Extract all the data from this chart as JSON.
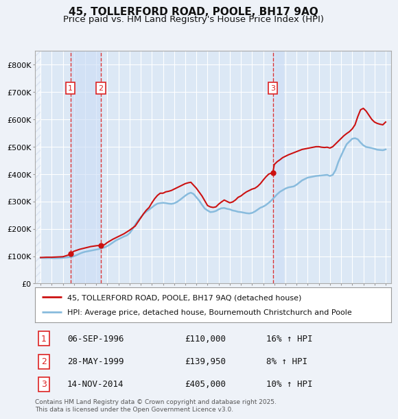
{
  "title": "45, TOLLERFORD ROAD, POOLE, BH17 9AQ",
  "subtitle": "Price paid vs. HM Land Registry's House Price Index (HPI)",
  "title_fontsize": 11,
  "subtitle_fontsize": 9.5,
  "background_color": "#eef2f8",
  "plot_bg_color": "#dce8f5",
  "grid_color": "#ffffff",
  "highlight_color": "#ccddf5",
  "hatch_color": "#c8d4e8",
  "legend_label_red": "45, TOLLERFORD ROAD, POOLE, BH17 9AQ (detached house)",
  "legend_label_blue": "HPI: Average price, detached house, Bournemouth Christchurch and Poole",
  "transactions": [
    {
      "label": "1",
      "date": "06-SEP-1996",
      "price": 110000,
      "pct": "16% ↑ HPI",
      "x": 1996.68
    },
    {
      "label": "2",
      "date": "28-MAY-1999",
      "price": 139950,
      "pct": "8% ↑ HPI",
      "x": 1999.41
    },
    {
      "label": "3",
      "date": "14-NOV-2014",
      "price": 405000,
      "pct": "10% ↑ HPI",
      "x": 2014.87
    }
  ],
  "hpi_x": [
    1994.0,
    1994.25,
    1994.5,
    1994.75,
    1995.0,
    1995.25,
    1995.5,
    1995.75,
    1996.0,
    1996.25,
    1996.5,
    1996.75,
    1997.0,
    1997.25,
    1997.5,
    1997.75,
    1998.0,
    1998.25,
    1998.5,
    1998.75,
    1999.0,
    1999.25,
    1999.5,
    1999.75,
    2000.0,
    2000.25,
    2000.5,
    2000.75,
    2001.0,
    2001.25,
    2001.5,
    2001.75,
    2002.0,
    2002.25,
    2002.5,
    2002.75,
    2003.0,
    2003.25,
    2003.5,
    2003.75,
    2004.0,
    2004.25,
    2004.5,
    2004.75,
    2005.0,
    2005.25,
    2005.5,
    2005.75,
    2006.0,
    2006.25,
    2006.5,
    2006.75,
    2007.0,
    2007.25,
    2007.5,
    2007.75,
    2008.0,
    2008.25,
    2008.5,
    2008.75,
    2009.0,
    2009.25,
    2009.5,
    2009.75,
    2010.0,
    2010.25,
    2010.5,
    2010.75,
    2011.0,
    2011.25,
    2011.5,
    2011.75,
    2012.0,
    2012.25,
    2012.5,
    2012.75,
    2013.0,
    2013.25,
    2013.5,
    2013.75,
    2014.0,
    2014.25,
    2014.5,
    2014.75,
    2015.0,
    2015.25,
    2015.5,
    2015.75,
    2016.0,
    2016.25,
    2016.5,
    2016.75,
    2017.0,
    2017.25,
    2017.5,
    2017.75,
    2018.0,
    2018.25,
    2018.5,
    2018.75,
    2019.0,
    2019.25,
    2019.5,
    2019.75,
    2020.0,
    2020.25,
    2020.5,
    2020.75,
    2021.0,
    2021.25,
    2021.5,
    2021.75,
    2022.0,
    2022.25,
    2022.5,
    2022.75,
    2023.0,
    2023.25,
    2023.5,
    2023.75,
    2024.0,
    2024.25,
    2024.5,
    2024.75,
    2025.0
  ],
  "hpi_y": [
    94000,
    93500,
    93200,
    93800,
    93000,
    92500,
    92800,
    93200,
    94000,
    95000,
    96000,
    97000,
    100000,
    104000,
    109000,
    113000,
    116000,
    118000,
    120000,
    122000,
    124000,
    126000,
    129000,
    132000,
    137000,
    143000,
    150000,
    157000,
    162000,
    167000,
    172000,
    176000,
    184000,
    198000,
    215000,
    230000,
    242000,
    254000,
    263000,
    270000,
    278000,
    286000,
    292000,
    294000,
    295000,
    294000,
    292000,
    291000,
    293000,
    298000,
    305000,
    313000,
    321000,
    328000,
    332000,
    327000,
    315000,
    303000,
    288000,
    274000,
    267000,
    261000,
    262000,
    265000,
    271000,
    275000,
    276000,
    273000,
    271000,
    267000,
    265000,
    262000,
    261000,
    259000,
    257000,
    256000,
    258000,
    263000,
    270000,
    277000,
    281000,
    287000,
    295000,
    304000,
    315000,
    326000,
    335000,
    341000,
    347000,
    351000,
    353000,
    355000,
    361000,
    369000,
    377000,
    382000,
    387000,
    389000,
    391000,
    393000,
    394000,
    395000,
    396000,
    397000,
    393000,
    397000,
    414000,
    444000,
    467000,
    489000,
    509000,
    519000,
    529000,
    531000,
    527000,
    515000,
    505000,
    499000,
    497000,
    495000,
    492000,
    489000,
    488000,
    487000,
    490000
  ],
  "price_x": [
    1994.0,
    1994.25,
    1994.5,
    1994.75,
    1995.0,
    1995.5,
    1996.0,
    1996.5,
    1996.68,
    1997.0,
    1997.5,
    1998.0,
    1998.5,
    1999.0,
    1999.25,
    1999.41,
    1999.75,
    2000.0,
    2000.5,
    2001.0,
    2001.5,
    2002.0,
    2002.5,
    2003.0,
    2003.25,
    2003.5,
    2003.75,
    2004.0,
    2004.25,
    2004.5,
    2004.75,
    2005.0,
    2005.25,
    2005.5,
    2005.75,
    2006.0,
    2006.25,
    2006.5,
    2006.75,
    2007.0,
    2007.25,
    2007.5,
    2008.0,
    2008.5,
    2009.0,
    2009.25,
    2009.5,
    2009.75,
    2010.0,
    2010.25,
    2010.5,
    2010.75,
    2011.0,
    2011.25,
    2011.5,
    2011.75,
    2012.0,
    2012.25,
    2012.5,
    2012.75,
    2013.0,
    2013.25,
    2013.5,
    2013.75,
    2014.0,
    2014.25,
    2014.5,
    2014.87,
    2015.0,
    2015.25,
    2015.5,
    2015.75,
    2016.0,
    2016.25,
    2016.5,
    2016.75,
    2017.0,
    2017.25,
    2017.5,
    2017.75,
    2018.0,
    2018.25,
    2018.5,
    2018.75,
    2019.0,
    2019.25,
    2019.5,
    2019.75,
    2020.0,
    2020.25,
    2020.5,
    2020.75,
    2021.0,
    2021.25,
    2021.5,
    2021.75,
    2022.0,
    2022.25,
    2022.5,
    2022.75,
    2023.0,
    2023.25,
    2023.5,
    2023.75,
    2024.0,
    2024.25,
    2024.5,
    2024.75,
    2025.0
  ],
  "price_y": [
    95000,
    95500,
    96000,
    96000,
    96000,
    97000,
    98000,
    104000,
    110000,
    118000,
    125000,
    130000,
    135000,
    138000,
    139000,
    139950,
    142000,
    150000,
    162000,
    172000,
    182000,
    195000,
    210000,
    240000,
    255000,
    268000,
    278000,
    295000,
    310000,
    322000,
    330000,
    330000,
    335000,
    337000,
    340000,
    345000,
    350000,
    355000,
    360000,
    365000,
    368000,
    370000,
    348000,
    320000,
    285000,
    280000,
    278000,
    280000,
    290000,
    298000,
    305000,
    300000,
    295000,
    298000,
    305000,
    315000,
    320000,
    328000,
    335000,
    340000,
    345000,
    348000,
    355000,
    365000,
    378000,
    390000,
    400000,
    405000,
    435000,
    445000,
    452000,
    460000,
    465000,
    470000,
    474000,
    478000,
    482000,
    486000,
    490000,
    492000,
    494000,
    496000,
    498000,
    500000,
    500000,
    498000,
    497000,
    498000,
    495000,
    500000,
    510000,
    520000,
    530000,
    540000,
    548000,
    555000,
    565000,
    580000,
    610000,
    635000,
    640000,
    630000,
    615000,
    600000,
    590000,
    585000,
    582000,
    580000,
    590000
  ],
  "xlim": [
    1993.5,
    2025.5
  ],
  "ylim": [
    0,
    850000
  ],
  "yticks": [
    0,
    100000,
    200000,
    300000,
    400000,
    500000,
    600000,
    700000,
    800000
  ],
  "ytick_labels": [
    "£0",
    "£100K",
    "£200K",
    "£300K",
    "£400K",
    "£500K",
    "£600K",
    "£700K",
    "£800K"
  ],
  "xticks": [
    1994,
    1995,
    1996,
    1997,
    1998,
    1999,
    2000,
    2001,
    2002,
    2003,
    2004,
    2005,
    2006,
    2007,
    2008,
    2009,
    2010,
    2011,
    2012,
    2013,
    2014,
    2015,
    2016,
    2017,
    2018,
    2019,
    2020,
    2021,
    2022,
    2023,
    2024,
    2025
  ],
  "vline_x": [
    1996.68,
    1999.41,
    2014.87
  ],
  "vline_color": "#dd2222",
  "red_color": "#cc1111",
  "blue_color": "#88bbdd",
  "marker_color": "#cc1111",
  "label_box_color": "#dd2222",
  "footnote": "Contains HM Land Registry data © Crown copyright and database right 2025.\nThis data is licensed under the Open Government Licence v3.0."
}
